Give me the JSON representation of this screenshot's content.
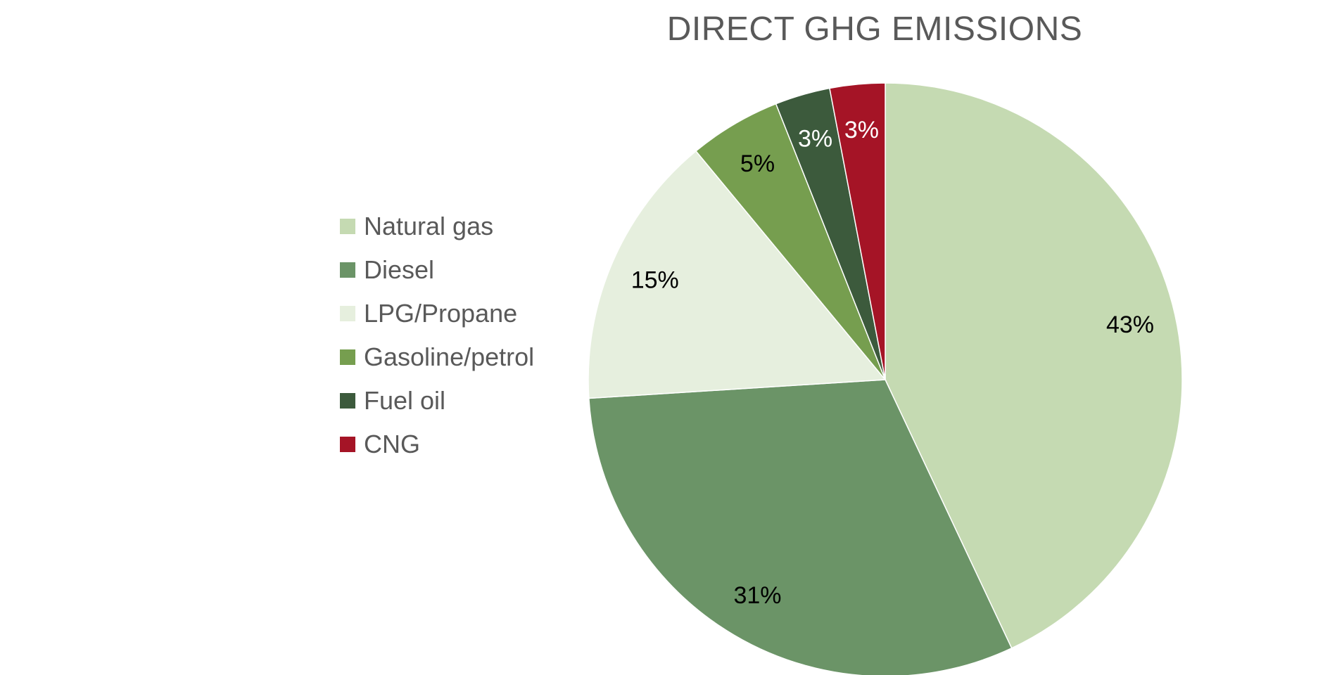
{
  "chart_data": {
    "type": "pie",
    "title": "DIRECT GHG EMISSIONS",
    "legend_position": "left",
    "slices": [
      {
        "name": "Natural gas",
        "value": 43,
        "label": "43%",
        "color": "#c5dab2",
        "label_color": "#000000"
      },
      {
        "name": "Diesel",
        "value": 31,
        "label": "31%",
        "color": "#6b9467",
        "label_color": "#000000"
      },
      {
        "name": "LPG/Propane",
        "value": 15,
        "label": "15%",
        "color": "#e6efde",
        "label_color": "#000000"
      },
      {
        "name": "Gasoline/petrol",
        "value": 5,
        "label": "5%",
        "color": "#769e4f",
        "label_color": "#000000"
      },
      {
        "name": "Fuel oil",
        "value": 3,
        "label": "3%",
        "color": "#3c5a3c",
        "label_color": "#ffffff"
      },
      {
        "name": "CNG",
        "value": 3,
        "label": "3%",
        "color": "#a51426",
        "label_color": "#ffffff"
      }
    ]
  }
}
